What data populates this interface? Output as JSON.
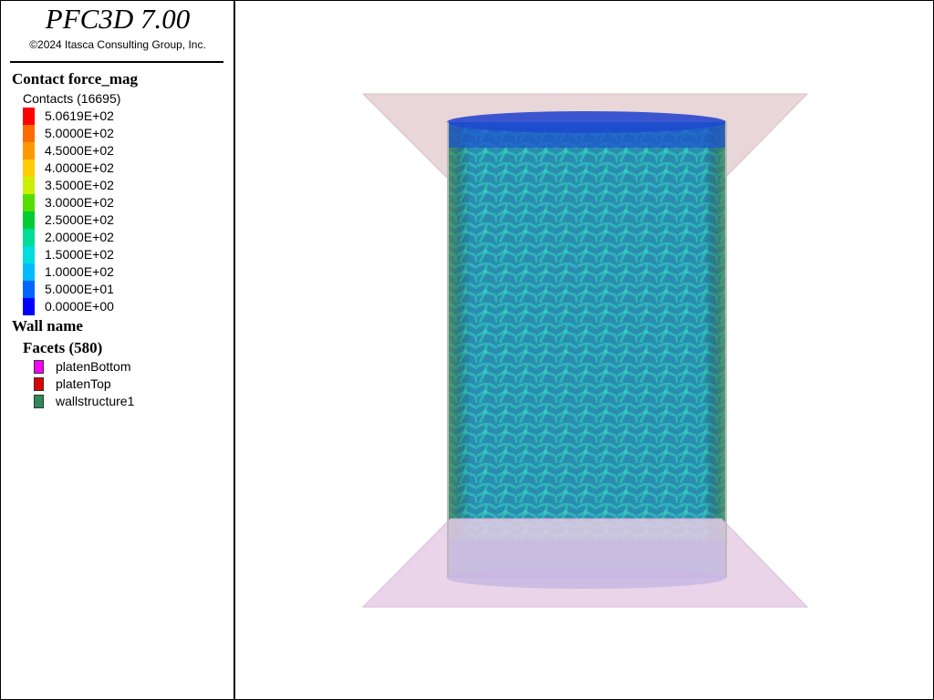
{
  "header": {
    "title": "PFC3D 7.00",
    "copyright": "©2024 Itasca Consulting Group, Inc."
  },
  "contact_legend": {
    "title": "Contact force_mag",
    "subtitle": "Contacts (16695)",
    "entries": [
      {
        "label": "5.0619E+02",
        "color": "#ff0000"
      },
      {
        "label": "5.0000E+02",
        "color": "#ff6a00"
      },
      {
        "label": "4.5000E+02",
        "color": "#ff9900"
      },
      {
        "label": "4.0000E+02",
        "color": "#ffcc00"
      },
      {
        "label": "3.5000E+02",
        "color": "#ccee00"
      },
      {
        "label": "3.0000E+02",
        "color": "#55dd00"
      },
      {
        "label": "2.5000E+02",
        "color": "#00cc33"
      },
      {
        "label": "2.0000E+02",
        "color": "#00dd99"
      },
      {
        "label": "1.5000E+02",
        "color": "#00dddd"
      },
      {
        "label": "1.0000E+02",
        "color": "#00bbff"
      },
      {
        "label": "5.0000E+01",
        "color": "#0066ff"
      },
      {
        "label": "0.0000E+00",
        "color": "#0000ff"
      }
    ]
  },
  "wall_legend": {
    "title": "Wall name",
    "subtitle": "Facets (580)",
    "entries": [
      {
        "label": "platenBottom",
        "color": "#ff00ff"
      },
      {
        "label": "platenTop",
        "color": "#e00000"
      },
      {
        "label": "wallstructure1",
        "color": "#2e8b57"
      }
    ]
  }
}
